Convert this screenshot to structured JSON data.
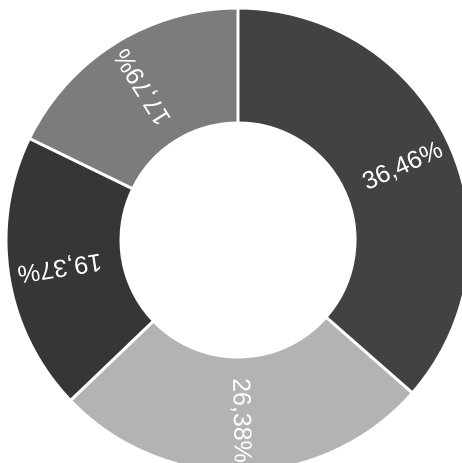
{
  "chart_data": {
    "type": "pie",
    "variant": "donut",
    "title": "",
    "slices": [
      {
        "label": "36,46%",
        "value": 36.46,
        "color": "#424242"
      },
      {
        "label": "26,38%",
        "value": 26.38,
        "color": "#b3b3b3"
      },
      {
        "label": "19,37%",
        "value": 19.37,
        "color": "#363636"
      },
      {
        "label": "17,79%",
        "value": 17.79,
        "color": "#7c7c7c"
      }
    ],
    "start_angle": "12 o'clock",
    "direction": "clockwise",
    "legend": "none"
  }
}
